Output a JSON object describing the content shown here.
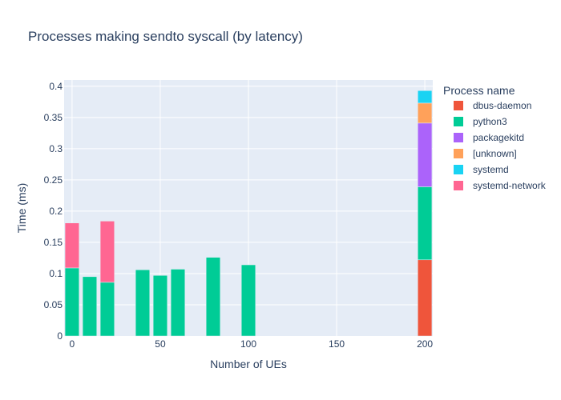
{
  "chart_data": {
    "type": "bar",
    "stacked": true,
    "title": "Processes making sendto syscall (by latency)",
    "xlabel": "Number of UEs",
    "ylabel": "Time (ms)",
    "xlim": [
      -4.5,
      204.5
    ],
    "ylim": [
      0,
      0.41
    ],
    "xticks": [
      0,
      50,
      100,
      150,
      200
    ],
    "yticks": [
      0,
      0.05,
      0.1,
      0.15,
      0.2,
      0.25,
      0.3,
      0.35,
      0.4
    ],
    "ytick_labels": [
      "0",
      "0.05",
      "0.1",
      "0.15",
      "0.2",
      "0.25",
      "0.3",
      "0.35",
      "0.4"
    ],
    "bar_width": 8,
    "legend_title": "Process name",
    "legend_position": "right",
    "grid": true,
    "plot_bgcolor": "#E5ECF6",
    "x": [
      0,
      10,
      20,
      40,
      50,
      60,
      80,
      100,
      200
    ],
    "series": [
      {
        "name": "dbus-daemon",
        "color": "#EF553B",
        "values": [
          0,
          0,
          0,
          0,
          0,
          0,
          0,
          0,
          0.122
        ]
      },
      {
        "name": "python3",
        "color": "#00CC96",
        "values": [
          0.109,
          0.095,
          0.086,
          0.106,
          0.097,
          0.107,
          0.126,
          0.114,
          0.117
        ]
      },
      {
        "name": "packagekitd",
        "color": "#AB63FA",
        "values": [
          0,
          0,
          0,
          0,
          0,
          0,
          0,
          0,
          0.102
        ]
      },
      {
        "name": "[unknown]",
        "color": "#FFA15A",
        "values": [
          0,
          0,
          0,
          0,
          0,
          0,
          0,
          0,
          0.032
        ]
      },
      {
        "name": "systemd",
        "color": "#19D3F3",
        "values": [
          0,
          0,
          0,
          0,
          0,
          0,
          0,
          0,
          0.02
        ]
      },
      {
        "name": "systemd-network",
        "color": "#FF6692",
        "values": [
          0.072,
          0,
          0.098,
          0,
          0,
          0,
          0,
          0,
          0
        ]
      }
    ]
  }
}
